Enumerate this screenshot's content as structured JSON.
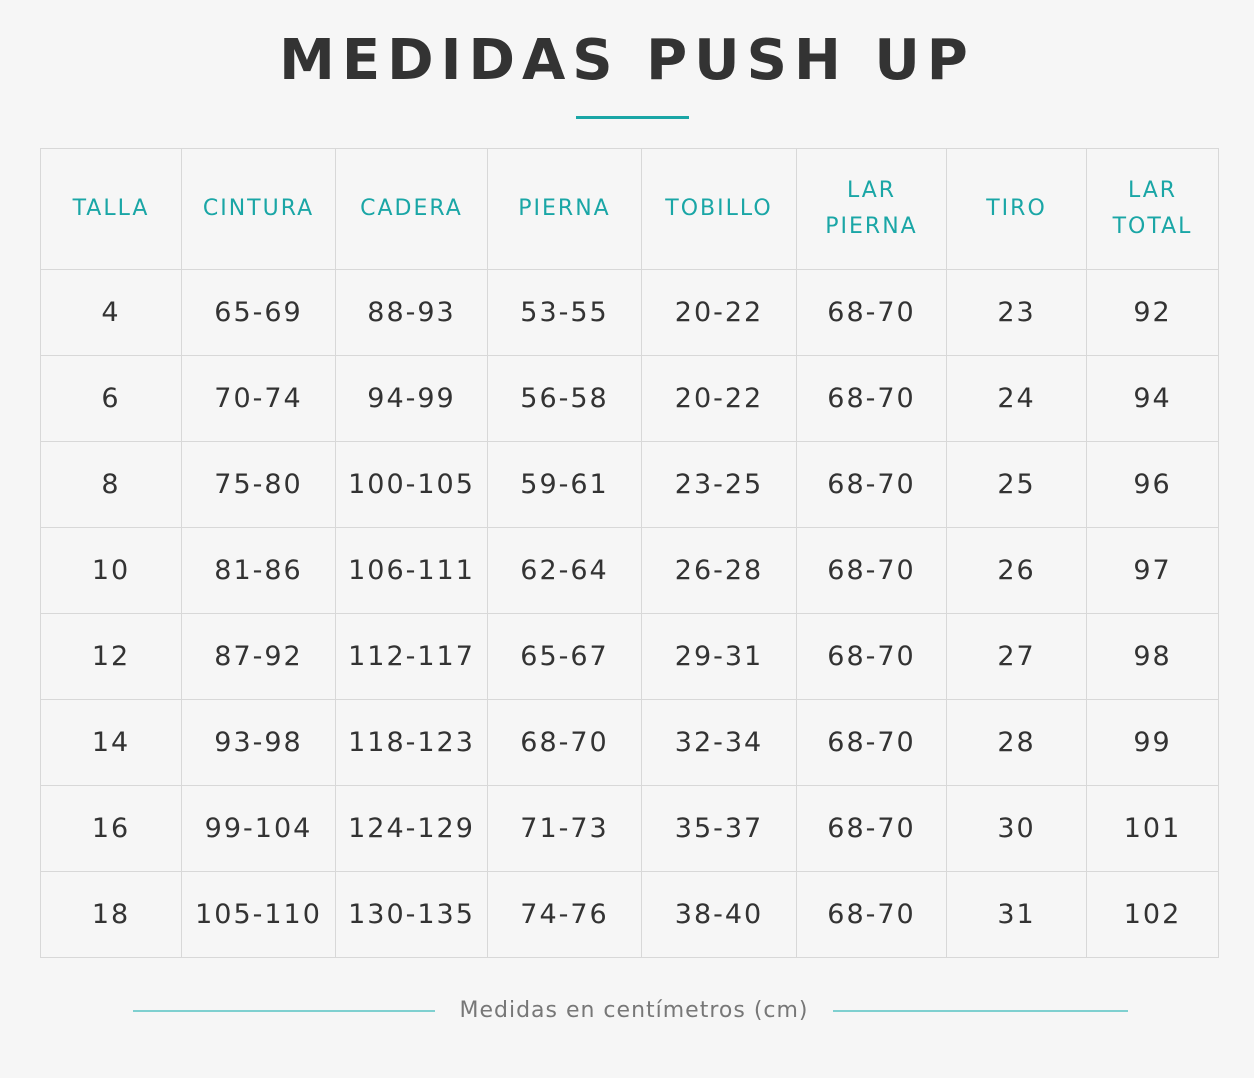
{
  "title": "MEDIDAS PUSH UP",
  "table": {
    "headers": [
      "TALLA",
      "CINTURA",
      "CADERA",
      "PIERNA",
      "TOBILLO",
      "LAR PIERNA",
      "TIRO",
      "LAR TOTAL"
    ],
    "rows": [
      [
        "4",
        "65-69",
        "88-93",
        "53-55",
        "20-22",
        "68-70",
        "23",
        "92"
      ],
      [
        "6",
        "70-74",
        "94-99",
        "56-58",
        "20-22",
        "68-70",
        "24",
        "94"
      ],
      [
        "8",
        "75-80",
        "100-105",
        "59-61",
        "23-25",
        "68-70",
        "25",
        "96"
      ],
      [
        "10",
        "81-86",
        "106-111",
        "62-64",
        "26-28",
        "68-70",
        "26",
        "97"
      ],
      [
        "12",
        "87-92",
        "112-117",
        "65-67",
        "29-31",
        "68-70",
        "27",
        "98"
      ],
      [
        "14",
        "93-98",
        "118-123",
        "68-70",
        "32-34",
        "68-70",
        "28",
        "99"
      ],
      [
        "16",
        "99-104",
        "124-129",
        "71-73",
        "35-37",
        "68-70",
        "30",
        "101"
      ],
      [
        "18",
        "105-110",
        "130-135",
        "74-76",
        "38-40",
        "68-70",
        "31",
        "102"
      ]
    ]
  },
  "footer": {
    "note": "Medidas en centímetros (cm)"
  },
  "colors": {
    "accent": "#1aa6a6",
    "text": "#333333",
    "background": "#f6f6f6",
    "border": "#d8d8d8"
  }
}
